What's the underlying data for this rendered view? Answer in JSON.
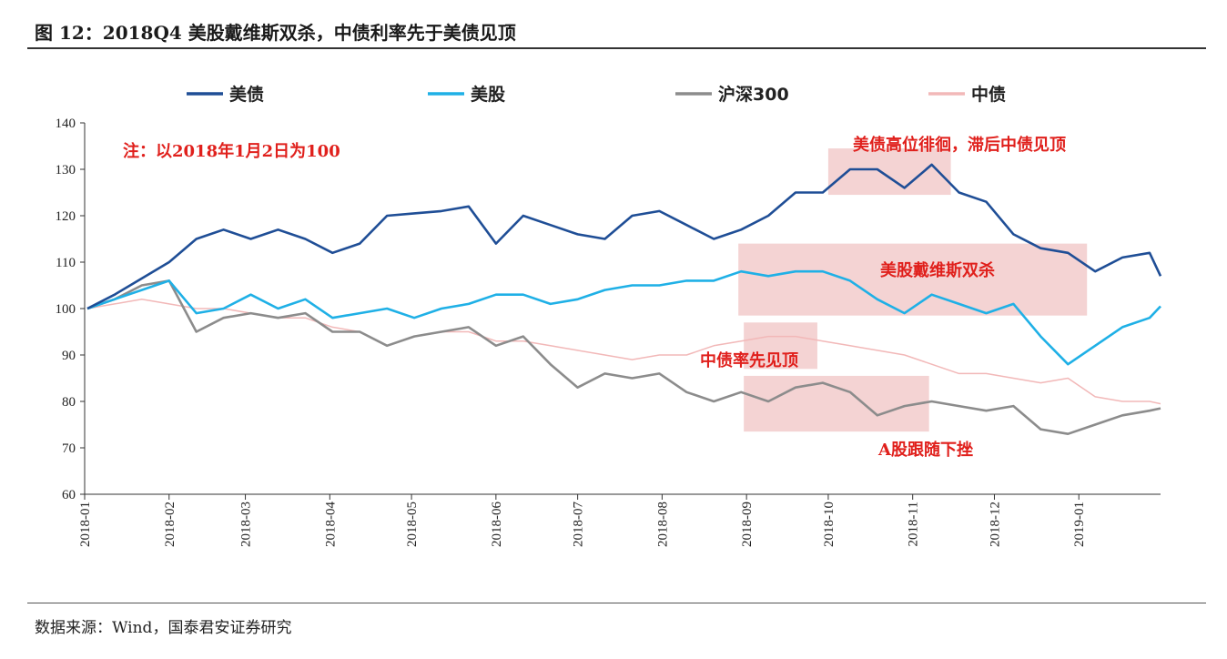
{
  "title": "图 12：2018Q4 美股戴维斯双杀，中债利率先于美债见顶",
  "source": "数据来源：Wind，国泰君安证券研究",
  "chart_data": {
    "type": "line",
    "title": "图 12：2018Q4 美股戴维斯双杀，中债利率先于美债见顶",
    "note": "注：以2018年1月2日为100",
    "legend_position": "top",
    "grid": false,
    "ylim": [
      60,
      140
    ],
    "yticks": [
      60,
      70,
      80,
      90,
      100,
      110,
      120,
      130,
      140
    ],
    "xlim": [
      "2018-01-01",
      "2019-01-31"
    ],
    "xticks": [
      "2018-01",
      "2018-02",
      "2018-03",
      "2018-04",
      "2018-05",
      "2018-06",
      "2018-07",
      "2018-08",
      "2018-09",
      "2018-10",
      "2018-11",
      "2018-12",
      "2019-01"
    ],
    "x": [
      "2018-01-02",
      "2018-01-12",
      "2018-01-22",
      "2018-02-01",
      "2018-02-11",
      "2018-02-21",
      "2018-03-03",
      "2018-03-13",
      "2018-03-23",
      "2018-04-02",
      "2018-04-12",
      "2018-04-22",
      "2018-05-02",
      "2018-05-12",
      "2018-05-22",
      "2018-06-01",
      "2018-06-11",
      "2018-06-21",
      "2018-07-01",
      "2018-07-11",
      "2018-07-21",
      "2018-07-31",
      "2018-08-10",
      "2018-08-20",
      "2018-08-30",
      "2018-09-09",
      "2018-09-19",
      "2018-09-29",
      "2018-10-09",
      "2018-10-19",
      "2018-10-29",
      "2018-11-08",
      "2018-11-18",
      "2018-11-28",
      "2018-12-08",
      "2018-12-18",
      "2018-12-28",
      "2019-01-07",
      "2019-01-17",
      "2019-01-27",
      "2019-01-31"
    ],
    "series": [
      {
        "name": "美债",
        "color": "#1f4e96",
        "values": [
          100,
          103,
          106.5,
          110,
          115,
          117,
          115,
          117,
          115,
          112,
          114,
          120,
          120.5,
          121,
          122,
          114,
          120,
          118,
          116,
          115,
          120,
          121,
          118,
          115,
          117,
          120,
          125,
          125,
          130,
          130,
          126,
          131,
          125,
          123,
          116,
          113,
          112,
          108,
          111,
          112,
          107
        ]
      },
      {
        "name": "美股",
        "color": "#1fb0e6",
        "values": [
          100,
          102,
          104,
          106,
          99,
          100,
          103,
          100,
          102,
          98,
          99,
          100,
          98,
          100,
          101,
          103,
          103,
          101,
          102,
          104,
          105,
          105,
          106,
          106,
          108,
          107,
          108,
          108,
          106,
          102,
          99,
          103,
          101,
          99,
          101,
          94,
          88,
          92,
          96,
          98,
          100.5
        ]
      },
      {
        "name": "沪深300",
        "color": "#8c8c8c",
        "values": [
          100,
          102,
          105,
          106,
          95,
          98,
          99,
          98,
          99,
          95,
          95,
          92,
          94,
          95,
          96,
          92,
          94,
          88,
          83,
          86,
          85,
          86,
          82,
          80,
          82,
          80,
          83,
          84,
          82,
          77,
          79,
          80,
          79,
          78,
          79,
          74,
          73,
          75,
          77,
          78,
          78.5
        ]
      },
      {
        "name": "中债",
        "color": "#f2b8b8",
        "values": [
          100,
          101,
          102,
          101,
          100,
          100,
          99,
          98,
          98,
          96,
          95,
          92,
          94,
          95,
          95,
          93,
          93,
          92,
          91,
          90,
          89,
          90,
          90,
          92,
          93,
          94,
          94,
          93,
          92,
          91,
          90,
          88,
          86,
          86,
          85,
          84,
          85,
          81,
          80,
          80,
          79.5
        ]
      }
    ],
    "annotations": [
      {
        "text": "美债高位徘徊，滞后中债见顶",
        "color": "#e0201c",
        "box_x": [
          "2018-10-01",
          "2018-11-15"
        ],
        "box_y": [
          124.5,
          134.5
        ]
      },
      {
        "text": "美股戴维斯双杀",
        "color": "#e0201c",
        "box_x": [
          "2018-08-29",
          "2019-01-04"
        ],
        "box_y": [
          98.5,
          114
        ]
      },
      {
        "text": "中债率先见顶",
        "color": "#e0201c",
        "box_x": [
          "2018-08-31",
          "2018-09-27"
        ],
        "box_y": [
          87,
          97
        ]
      },
      {
        "text": "A股跟随下挫",
        "color": "#e0201c",
        "box_x": [
          "2018-08-31",
          "2018-11-07"
        ],
        "box_y": [
          73.5,
          85.5
        ]
      }
    ]
  }
}
